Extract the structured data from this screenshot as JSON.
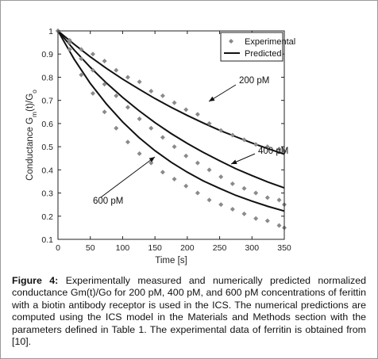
{
  "caption": {
    "label": "Figure 4:",
    "text": "Experimentally measured and numerically predicted normalized conductance Gm(t)/Go for 200 pM, 400 pM, and 600 pM concentrations of ferittin with a biotin antibody receptor is used in the ICS. The numerical predictions are computed using the ICS model in the Materials and Methods section with the parameters defined in Table 1. The experimental data of ferritin is obtained from [10]."
  },
  "chart_data": {
    "type": "scatter",
    "xlabel": "Time [s]",
    "ylabel": "Conductance Gm(t)/Go",
    "xlim": [
      0,
      350
    ],
    "ylim": [
      0.1,
      1.0
    ],
    "xticks": [
      0,
      50,
      100,
      150,
      200,
      250,
      300,
      350
    ],
    "yticks": [
      0.1,
      0.2,
      0.3,
      0.4,
      0.5,
      0.6,
      0.7,
      0.8,
      0.9,
      1
    ],
    "grid": false,
    "legend": {
      "placement": "top-right",
      "entries": [
        {
          "label": "Experimental",
          "marker": "diamond",
          "color": "#888888"
        },
        {
          "label": "Predicted",
          "marker": "line",
          "color": "#111111"
        }
      ]
    },
    "annotations": [
      {
        "text": "200 pM",
        "series": "200 pM"
      },
      {
        "text": "400 pM",
        "series": "400 pM"
      },
      {
        "text": "600 pM",
        "series": "600 pM"
      }
    ],
    "series": [
      {
        "name": "200 pM",
        "experimental": {
          "x": [
            0,
            18,
            36,
            54,
            72,
            90,
            108,
            126,
            144,
            162,
            180,
            198,
            216,
            234,
            252,
            270,
            288,
            306,
            324,
            342,
            350
          ],
          "y": [
            1.0,
            0.96,
            0.92,
            0.9,
            0.87,
            0.83,
            0.8,
            0.78,
            0.74,
            0.72,
            0.69,
            0.66,
            0.64,
            0.6,
            0.57,
            0.55,
            0.53,
            0.51,
            0.5,
            0.49,
            0.48
          ]
        },
        "predicted": {
          "x": [
            0,
            25,
            50,
            75,
            100,
            125,
            150,
            175,
            200,
            225,
            250,
            275,
            300,
            325,
            350
          ],
          "y": [
            1.0,
            0.942,
            0.888,
            0.838,
            0.792,
            0.749,
            0.708,
            0.67,
            0.635,
            0.602,
            0.571,
            0.543,
            0.516,
            0.491,
            0.468
          ]
        }
      },
      {
        "name": "400 pM",
        "experimental": {
          "x": [
            0,
            18,
            36,
            54,
            72,
            90,
            108,
            126,
            144,
            162,
            180,
            198,
            216,
            234,
            252,
            270,
            288,
            306,
            324,
            342,
            350
          ],
          "y": [
            1.0,
            0.95,
            0.88,
            0.83,
            0.77,
            0.72,
            0.67,
            0.62,
            0.58,
            0.54,
            0.5,
            0.46,
            0.43,
            0.4,
            0.37,
            0.34,
            0.32,
            0.3,
            0.28,
            0.27,
            0.25
          ]
        },
        "predicted": {
          "x": [
            0,
            25,
            50,
            75,
            100,
            125,
            150,
            175,
            200,
            225,
            250,
            275,
            300,
            325,
            350
          ],
          "y": [
            1.0,
            0.918,
            0.843,
            0.775,
            0.713,
            0.656,
            0.604,
            0.557,
            0.514,
            0.475,
            0.439,
            0.405,
            0.375,
            0.347,
            0.322
          ]
        }
      },
      {
        "name": "600 pM",
        "experimental": {
          "x": [
            0,
            18,
            36,
            54,
            72,
            90,
            108,
            126,
            144,
            162,
            180,
            198,
            216,
            234,
            252,
            270,
            288,
            306,
            324,
            342,
            350
          ],
          "y": [
            1.0,
            0.92,
            0.81,
            0.73,
            0.65,
            0.58,
            0.52,
            0.47,
            0.43,
            0.39,
            0.36,
            0.33,
            0.3,
            0.27,
            0.25,
            0.23,
            0.21,
            0.19,
            0.18,
            0.16,
            0.15
          ]
        },
        "predicted": {
          "x": [
            0,
            25,
            50,
            75,
            100,
            125,
            150,
            175,
            200,
            225,
            250,
            275,
            300,
            325,
            350
          ],
          "y": [
            1.0,
            0.878,
            0.773,
            0.684,
            0.607,
            0.54,
            0.483,
            0.433,
            0.39,
            0.352,
            0.32,
            0.29,
            0.265,
            0.242,
            0.222
          ]
        }
      }
    ]
  }
}
